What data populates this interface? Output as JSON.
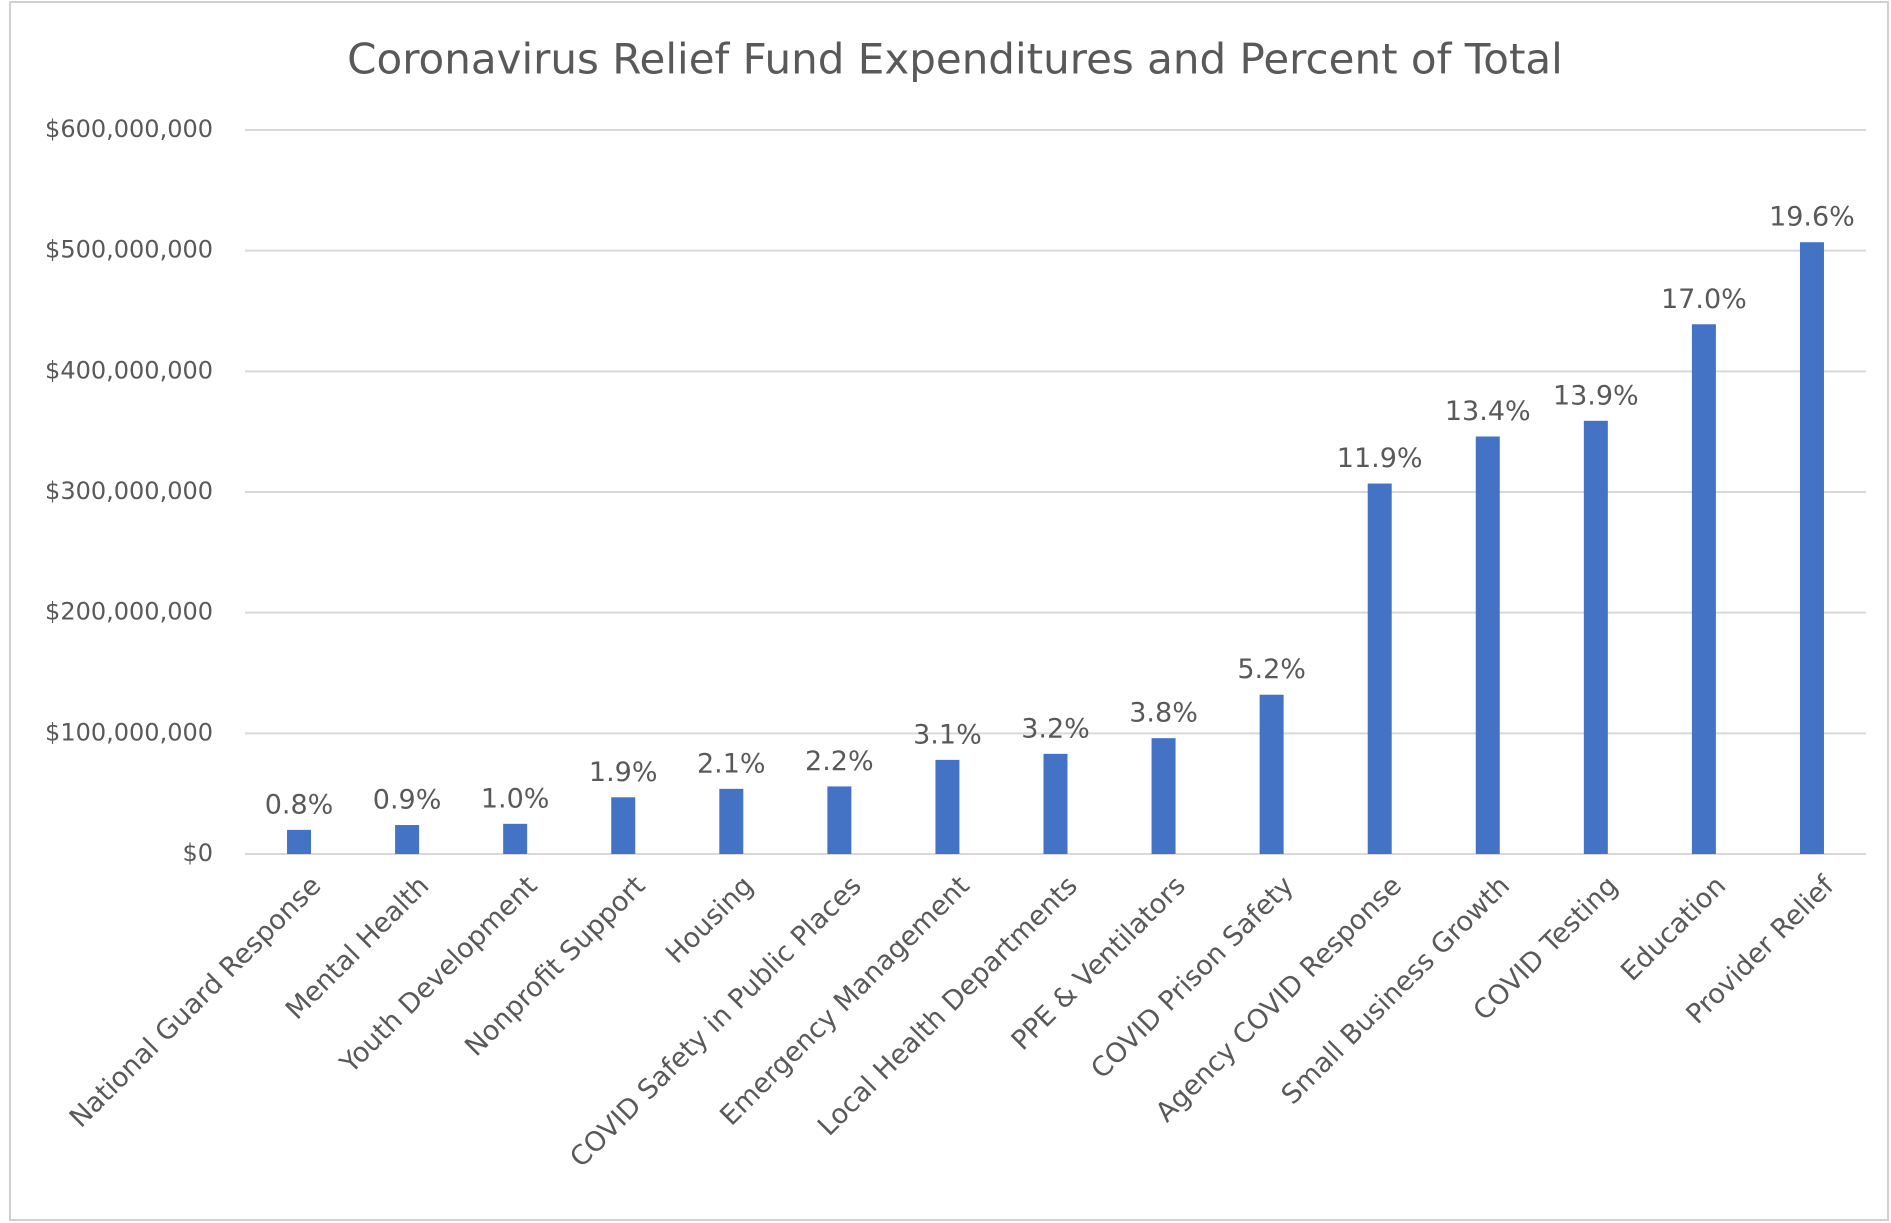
{
  "chart_data": {
    "type": "bar",
    "title": "Coronavirus Relief Fund Expenditures and Percent of Total",
    "categories": [
      "National Guard Response",
      "Mental Health",
      "Youth Development",
      "Nonprofit Support",
      "Housing",
      "COVID Safety in Public Places",
      "Emergency Management",
      "Local Health Departments",
      "PPE & Ventilators",
      "COVID Prison Safety",
      "Agency COVID Response",
      "Small Business Growth",
      "COVID Testing",
      "Education",
      "Provider Relief"
    ],
    "values": [
      20000000,
      24000000,
      25000000,
      47000000,
      54000000,
      56000000,
      78000000,
      83000000,
      96000000,
      132000000,
      307000000,
      346000000,
      359000000,
      439000000,
      507000000
    ],
    "percent_labels": [
      "0.8%",
      "0.9%",
      "1.0%",
      "1.9%",
      "2.1%",
      "2.2%",
      "3.1%",
      "3.2%",
      "3.8%",
      "5.2%",
      "11.9%",
      "13.4%",
      "13.9%",
      "17.0%",
      "19.6%"
    ],
    "color": "#4472c4",
    "ylim": [
      0,
      600000000
    ],
    "yticks": [
      {
        "value": 0,
        "label": "$0"
      },
      {
        "value": 100000000,
        "label": "$100,000,000"
      },
      {
        "value": 200000000,
        "label": "$200,000,000"
      },
      {
        "value": 300000000,
        "label": "$300,000,000"
      },
      {
        "value": 400000000,
        "label": "$400,000,000"
      },
      {
        "value": 500000000,
        "label": "$500,000,000"
      },
      {
        "value": 600000000,
        "label": "$600,000,000"
      }
    ],
    "grid": true
  }
}
